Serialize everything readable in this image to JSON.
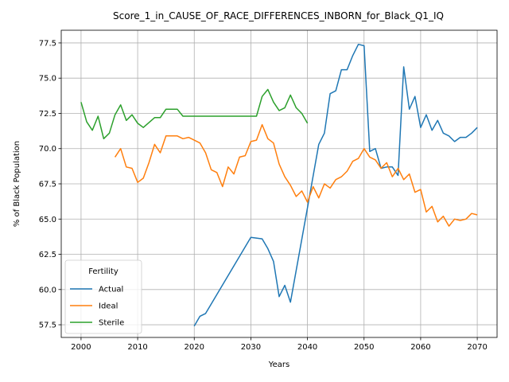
{
  "chart_data": {
    "type": "line",
    "title": "Score_1_in_CAUSE_OF_RACE_DIFFERENCES_INBORN_for_Black_Q1_IQ",
    "xlabel": "Years",
    "ylabel": "% of Black Population",
    "xlim": [
      1996.5,
      2073.5
    ],
    "ylim": [
      56.6,
      78.4
    ],
    "xticks": [
      2000,
      2010,
      2020,
      2030,
      2040,
      2050,
      2060,
      2070
    ],
    "yticks": [
      57.5,
      60.0,
      62.5,
      65.0,
      67.5,
      70.0,
      72.5,
      75.0,
      77.5
    ],
    "ytick_labels": [
      "57.5",
      "60.0",
      "62.5",
      "65.0",
      "67.5",
      "70.0",
      "72.5",
      "75.0",
      "77.5"
    ],
    "grid": true,
    "legend": {
      "title": "Fertility",
      "placement": "lower-left"
    },
    "series": [
      {
        "name": "Actual",
        "color": "#1f77b4",
        "points": [
          [
            2020,
            57.4
          ],
          [
            2021,
            58.1
          ],
          [
            2022,
            58.3
          ],
          [
            2030,
            63.7
          ],
          [
            2032,
            63.6
          ],
          [
            2033,
            62.9
          ],
          [
            2034,
            62.0
          ],
          [
            2035,
            59.5
          ],
          [
            2036,
            60.3
          ],
          [
            2037,
            59.1
          ],
          [
            2040,
            65.8
          ],
          [
            2042,
            70.3
          ],
          [
            2043,
            71.1
          ],
          [
            2044,
            73.9
          ],
          [
            2045,
            74.1
          ],
          [
            2046,
            75.6
          ],
          [
            2047,
            75.6
          ],
          [
            2048,
            76.6
          ],
          [
            2049,
            77.4
          ],
          [
            2050,
            77.3
          ],
          [
            2051,
            69.8
          ],
          [
            2052,
            70.0
          ],
          [
            2053,
            68.6
          ],
          [
            2054,
            68.7
          ],
          [
            2055,
            68.7
          ],
          [
            2056,
            68.1
          ],
          [
            2057,
            75.8
          ],
          [
            2058,
            72.8
          ],
          [
            2059,
            73.7
          ],
          [
            2060,
            71.5
          ],
          [
            2061,
            72.4
          ],
          [
            2062,
            71.3
          ],
          [
            2063,
            72.0
          ],
          [
            2064,
            71.1
          ],
          [
            2065,
            70.9
          ],
          [
            2066,
            70.5
          ],
          [
            2067,
            70.8
          ],
          [
            2068,
            70.8
          ],
          [
            2069,
            71.1
          ],
          [
            2070,
            71.5
          ]
        ]
      },
      {
        "name": "Ideal",
        "color": "#ff7f0e",
        "points": [
          [
            2006,
            69.4
          ],
          [
            2007,
            70.0
          ],
          [
            2008,
            68.7
          ],
          [
            2009,
            68.6
          ],
          [
            2010,
            67.6
          ],
          [
            2011,
            67.9
          ],
          [
            2012,
            69.0
          ],
          [
            2013,
            70.3
          ],
          [
            2014,
            69.7
          ],
          [
            2015,
            70.9
          ],
          [
            2016,
            70.9
          ],
          [
            2017,
            70.9
          ],
          [
            2018,
            70.7
          ],
          [
            2019,
            70.8
          ],
          [
            2020,
            70.6
          ],
          [
            2021,
            70.4
          ],
          [
            2022,
            69.7
          ],
          [
            2023,
            68.5
          ],
          [
            2024,
            68.3
          ],
          [
            2025,
            67.3
          ],
          [
            2026,
            68.7
          ],
          [
            2027,
            68.2
          ],
          [
            2028,
            69.4
          ],
          [
            2029,
            69.5
          ],
          [
            2030,
            70.5
          ],
          [
            2031,
            70.6
          ],
          [
            2032,
            71.7
          ],
          [
            2033,
            70.7
          ],
          [
            2034,
            70.4
          ],
          [
            2035,
            68.9
          ],
          [
            2036,
            68.0
          ],
          [
            2037,
            67.4
          ],
          [
            2038,
            66.6
          ],
          [
            2039,
            67.0
          ],
          [
            2040,
            66.2
          ],
          [
            2041,
            67.3
          ],
          [
            2042,
            66.5
          ],
          [
            2043,
            67.5
          ],
          [
            2044,
            67.2
          ],
          [
            2045,
            67.8
          ],
          [
            2046,
            68.0
          ],
          [
            2047,
            68.4
          ],
          [
            2048,
            69.1
          ],
          [
            2049,
            69.3
          ],
          [
            2050,
            70.0
          ],
          [
            2051,
            69.4
          ],
          [
            2052,
            69.2
          ],
          [
            2053,
            68.6
          ],
          [
            2054,
            69.0
          ],
          [
            2055,
            68.0
          ],
          [
            2056,
            68.6
          ],
          [
            2057,
            67.8
          ],
          [
            2058,
            68.2
          ],
          [
            2059,
            66.9
          ],
          [
            2060,
            67.1
          ],
          [
            2061,
            65.5
          ],
          [
            2062,
            65.9
          ],
          [
            2063,
            64.8
          ],
          [
            2064,
            65.2
          ],
          [
            2065,
            64.5
          ],
          [
            2066,
            65.0
          ],
          [
            2067,
            64.9
          ],
          [
            2068,
            65.0
          ],
          [
            2069,
            65.4
          ],
          [
            2070,
            65.3
          ]
        ]
      },
      {
        "name": "Sterile",
        "color": "#2ca02c",
        "points": [
          [
            2000,
            73.3
          ],
          [
            2001,
            71.9
          ],
          [
            2002,
            71.3
          ],
          [
            2003,
            72.3
          ],
          [
            2004,
            70.7
          ],
          [
            2005,
            71.1
          ],
          [
            2006,
            72.4
          ],
          [
            2007,
            73.1
          ],
          [
            2008,
            72.0
          ],
          [
            2009,
            72.4
          ],
          [
            2010,
            71.8
          ],
          [
            2011,
            71.5
          ],
          [
            2013,
            72.2
          ],
          [
            2014,
            72.2
          ],
          [
            2015,
            72.8
          ],
          [
            2016,
            72.8
          ],
          [
            2017,
            72.8
          ],
          [
            2018,
            72.3
          ],
          [
            2019,
            72.3
          ],
          [
            2020,
            72.3
          ],
          [
            2030,
            72.3
          ],
          [
            2031,
            72.3
          ],
          [
            2032,
            73.7
          ],
          [
            2033,
            74.2
          ],
          [
            2034,
            73.3
          ],
          [
            2035,
            72.7
          ],
          [
            2036,
            72.9
          ],
          [
            2037,
            73.8
          ],
          [
            2038,
            72.9
          ],
          [
            2039,
            72.5
          ],
          [
            2040,
            71.8
          ]
        ]
      }
    ]
  }
}
